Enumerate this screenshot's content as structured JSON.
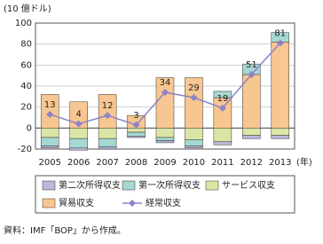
{
  "chart_data": {
    "type": "bar",
    "stacked": true,
    "y_unit": "(10 億ドル)",
    "x_unit": "(年)",
    "source": "資料：IMF「BOP」から作成。",
    "categories": [
      "2005",
      "2006",
      "2007",
      "2008",
      "2009",
      "2010",
      "2011",
      "2012",
      "2013"
    ],
    "series": [
      {
        "name": "第二次所得収支",
        "color": "#bdb6dc",
        "values": [
          -2,
          -2,
          -2,
          -1,
          -2,
          -2,
          -3,
          -3,
          -3
        ]
      },
      {
        "name": "第一次所得収支",
        "color": "#a6d8d2",
        "values": [
          -8,
          -9,
          -8,
          -4,
          -3,
          -6,
          6,
          10,
          9
        ]
      },
      {
        "name": "サービス収支",
        "color": "#dbe6a6",
        "values": [
          -9,
          -10,
          -10,
          -4,
          -9,
          -11,
          -13,
          -7,
          -7
        ]
      },
      {
        "name": "貿易収支",
        "color": "#f8c690",
        "values": [
          32,
          25,
          32,
          12,
          48,
          48,
          29,
          51,
          82
        ]
      },
      {
        "name": "経常収支",
        "color": "#8c82c6",
        "type": "line",
        "values": [
          13,
          4,
          12,
          3,
          34,
          29,
          19,
          51,
          81
        ]
      }
    ],
    "ylim": [
      -20,
      100
    ],
    "yticks": [
      -20,
      0,
      20,
      40,
      60,
      80,
      100
    ],
    "grid": true
  }
}
